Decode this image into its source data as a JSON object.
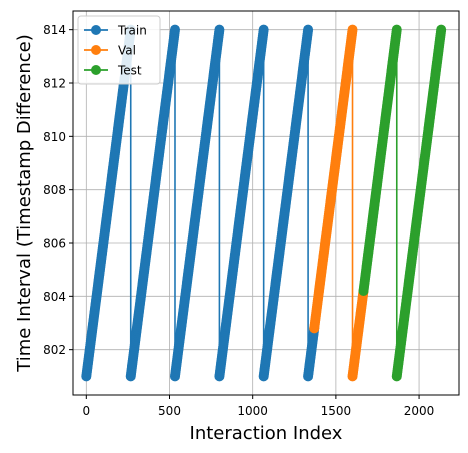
{
  "chart_data": {
    "type": "line",
    "title": "",
    "xlabel": "Interaction Index",
    "ylabel": "Time Interval (Timestamp Difference)",
    "xlim": [
      -80,
      2240
    ],
    "ylim": [
      800.3,
      814.7
    ],
    "xticks": [
      0,
      500,
      1000,
      1500,
      2000
    ],
    "yticks": [
      802,
      804,
      806,
      808,
      810,
      812,
      814
    ],
    "grid": true,
    "legend_position": "top-left",
    "marker": "circle",
    "series": [
      {
        "name": "Train",
        "color": "#1f77b4",
        "segments": [
          [
            [
              0,
              801
            ],
            [
              267,
              814
            ]
          ],
          [
            [
              267,
              801
            ],
            [
              533,
              814
            ]
          ],
          [
            [
              533,
              801
            ],
            [
              800,
              814
            ]
          ],
          [
            [
              800,
              801
            ],
            [
              1066,
              814
            ]
          ],
          [
            [
              1066,
              801
            ],
            [
              1333,
              814
            ]
          ],
          [
            [
              1333,
              801
            ],
            [
              1370,
              802.8
            ]
          ]
        ]
      },
      {
        "name": "Val",
        "color": "#ff7f0e",
        "segments": [
          [
            [
              1370,
              802.8
            ],
            [
              1600,
              814
            ]
          ],
          [
            [
              1600,
              801
            ],
            [
              1666,
              804.2
            ]
          ]
        ]
      },
      {
        "name": "Test",
        "color": "#2ca02c",
        "segments": [
          [
            [
              1666,
              804.2
            ],
            [
              1866,
              814
            ]
          ],
          [
            [
              1866,
              801
            ],
            [
              2133,
              814
            ]
          ]
        ]
      }
    ]
  }
}
